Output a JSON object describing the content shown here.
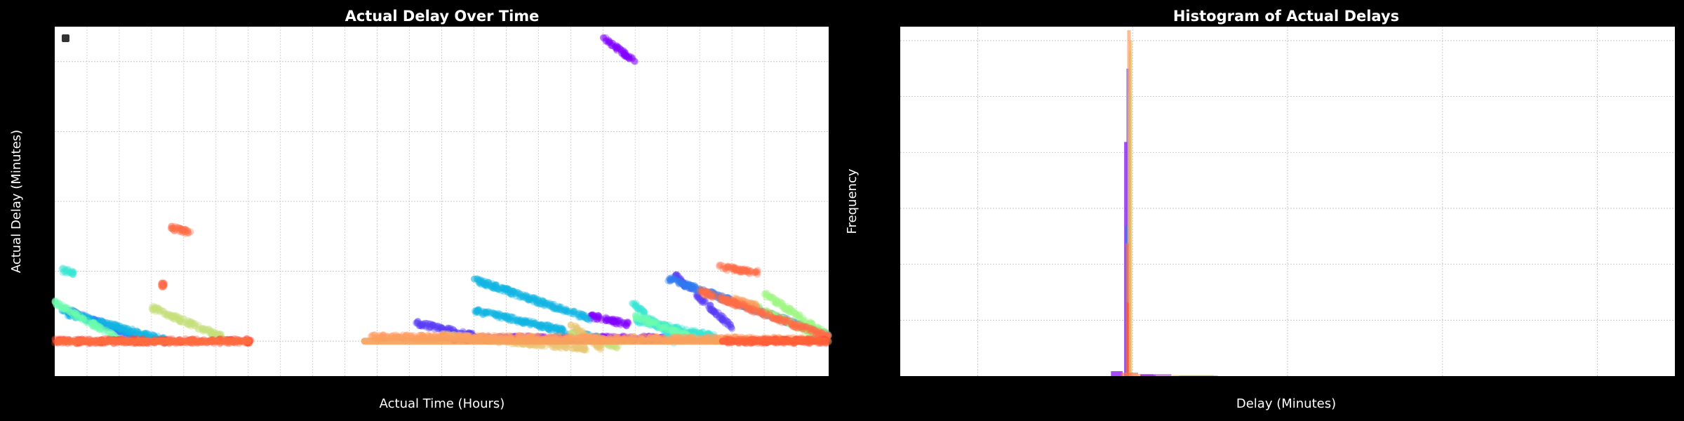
{
  "chart_data": [
    {
      "type": "scatter",
      "title": "Actual Delay Over Time",
      "xlabel": "Actual Time (Hours)",
      "ylabel": "Actual Delay (Minutes)",
      "xlim": [
        0,
        24
      ],
      "ylim": [
        -2.5,
        22.5
      ],
      "grid": true,
      "legend": "top-left",
      "series": [
        {
          "color": "#8000ff",
          "segments": [
            [
              [
                17,
                21.7
              ],
              [
                18.0,
                20.0
              ]
            ],
            [
              [
                12.3,
                0.2
              ],
              [
                19.0,
                0.2
              ]
            ],
            [
              [
                16.6,
                1.8
              ],
              [
                17.8,
                1.2
              ]
            ]
          ]
        },
        {
          "color": "#5a3df6",
          "segments": [
            [
              [
                11.2,
                1.3
              ],
              [
                13.0,
                0.4
              ]
            ],
            [
              [
                19.2,
                4.8
              ],
              [
                21.0,
                1.0
              ]
            ]
          ]
        },
        {
          "color": "#2d7bf0",
          "segments": [
            [
              [
                19.0,
                4.5
              ],
              [
                24.0,
                0.4
              ]
            ],
            [
              [
                0.4,
                2.2
              ],
              [
                2.5,
                0.3
              ]
            ]
          ]
        },
        {
          "color": "#12b5e3",
          "segments": [
            [
              [
                0.2,
                2.1
              ],
              [
                3.5,
                0.0
              ]
            ],
            [
              [
                13.0,
                2.2
              ],
              [
                17.0,
                0.1
              ]
            ],
            [
              [
                13.0,
                4.4
              ],
              [
                16.6,
                1.6
              ]
            ]
          ]
        },
        {
          "color": "#36e6d4",
          "segments": [
            [
              [
                17.9,
                2.8
              ],
              [
                19.2,
                0.0
              ]
            ],
            [
              [
                0.2,
                5.1
              ],
              [
                0.6,
                4.9
              ]
            ],
            [
              [
                18.0,
                1.5
              ],
              [
                20.5,
                0.3
              ]
            ]
          ]
        },
        {
          "color": "#6efbb0",
          "segments": [
            [
              [
                0.0,
                2.8
              ],
              [
                2.0,
                0.1
              ]
            ],
            [
              [
                18.0,
                1.8
              ],
              [
                19.8,
                0.2
              ]
            ]
          ]
        },
        {
          "color": "#a1f585",
          "segments": [
            [
              [
                22.0,
                3.4
              ],
              [
                24.0,
                0.4
              ]
            ],
            [
              [
                21.5,
                2.7
              ],
              [
                24.0,
                0.0
              ]
            ]
          ]
        },
        {
          "color": "#c7e07a",
          "segments": [
            [
              [
                3.0,
                2.4
              ],
              [
                5.2,
                0.3
              ]
            ],
            [
              [
                16.0,
                0.5
              ],
              [
                17.5,
                -0.4
              ]
            ]
          ]
        },
        {
          "color": "#e8c672",
          "segments": [
            [
              [
                12.0,
                0.4
              ],
              [
                16.5,
                -0.5
              ]
            ],
            [
              [
                16.0,
                1.2
              ],
              [
                17.0,
                -0.6
              ]
            ]
          ]
        },
        {
          "color": "#ff9e62",
          "segments": [
            [
              [
                9.8,
                0.3
              ],
              [
                23.5,
                0.1
              ]
            ],
            [
              [
                21.0,
                3.0
              ],
              [
                21.8,
                2.5
              ]
            ]
          ]
        },
        {
          "color": "#ff6e48",
          "segments": [
            [
              [
                20.6,
                5.3
              ],
              [
                21.8,
                4.9
              ]
            ],
            [
              [
                20.0,
                3.6
              ],
              [
                24.0,
                0.3
              ]
            ],
            [
              [
                3.6,
                8.1
              ],
              [
                4.3,
                7.7
              ]
            ],
            [
              [
                3.3,
                4.0
              ],
              [
                3.4,
                4.0
              ]
            ]
          ]
        },
        {
          "color": "#ff4e30",
          "segments": [
            [
              [
                0.0,
                0.0
              ],
              [
                6.1,
                0.0
              ]
            ],
            [
              [
                20.8,
                0.0
              ],
              [
                24.0,
                0.0
              ]
            ]
          ]
        }
      ],
      "bands": [
        {
          "color": "#ff6e40",
          "x": [
            0.0,
            6.1
          ],
          "y": 0.0
        },
        {
          "color": "#f6a15c",
          "x": [
            9.5,
            24.0
          ],
          "y": 0.0
        },
        {
          "color": "#ff5a35",
          "x": [
            20.6,
            24.0
          ],
          "y": 0.0
        }
      ]
    },
    {
      "type": "bar",
      "title": "Histogram of Actual Delays",
      "xlabel": "Delay (Minutes)",
      "ylabel": "Frequency",
      "xlim": [
        -10,
        90
      ],
      "ylim": [
        0,
        1000
      ],
      "grid": true,
      "bars": [
        {
          "color": "#8000ff",
          "x": 18.9,
          "w": 0.45,
          "h": 670
        },
        {
          "color": "#5a3df6",
          "x": 19.2,
          "w": 0.4,
          "h": 880
        },
        {
          "color": "#2d7bf0",
          "x": 19.0,
          "w": 0.4,
          "h": 430
        },
        {
          "color": "#36e6d4",
          "x": 19.4,
          "w": 0.4,
          "h": 810
        },
        {
          "color": "#a1f585",
          "x": 19.5,
          "w": 0.35,
          "h": 930
        },
        {
          "color": "#e8c672",
          "x": 19.6,
          "w": 0.35,
          "h": 960
        },
        {
          "color": "#ff9e62",
          "x": 19.3,
          "w": 0.45,
          "h": 990
        },
        {
          "color": "#ff6e48",
          "x": 19.1,
          "w": 0.4,
          "h": 380
        },
        {
          "color": "#ff4e30",
          "x": 19.2,
          "w": 0.3,
          "h": 210
        },
        {
          "color": "#8000ff",
          "x": 17.2,
          "w": 1.5,
          "h": 14
        },
        {
          "color": "#ff6e48",
          "x": 18.5,
          "w": 2.2,
          "h": 10
        },
        {
          "color": "#ff9e62",
          "x": 20.2,
          "w": 2.5,
          "h": 6
        },
        {
          "color": "#8000ff",
          "x": 21.0,
          "w": 4.0,
          "h": 5
        },
        {
          "color": "#e8c672",
          "x": 23.0,
          "w": 7.5,
          "h": 3
        },
        {
          "color": "#36e6d4",
          "x": 26.0,
          "w": 5.0,
          "h": 2
        }
      ]
    }
  ]
}
